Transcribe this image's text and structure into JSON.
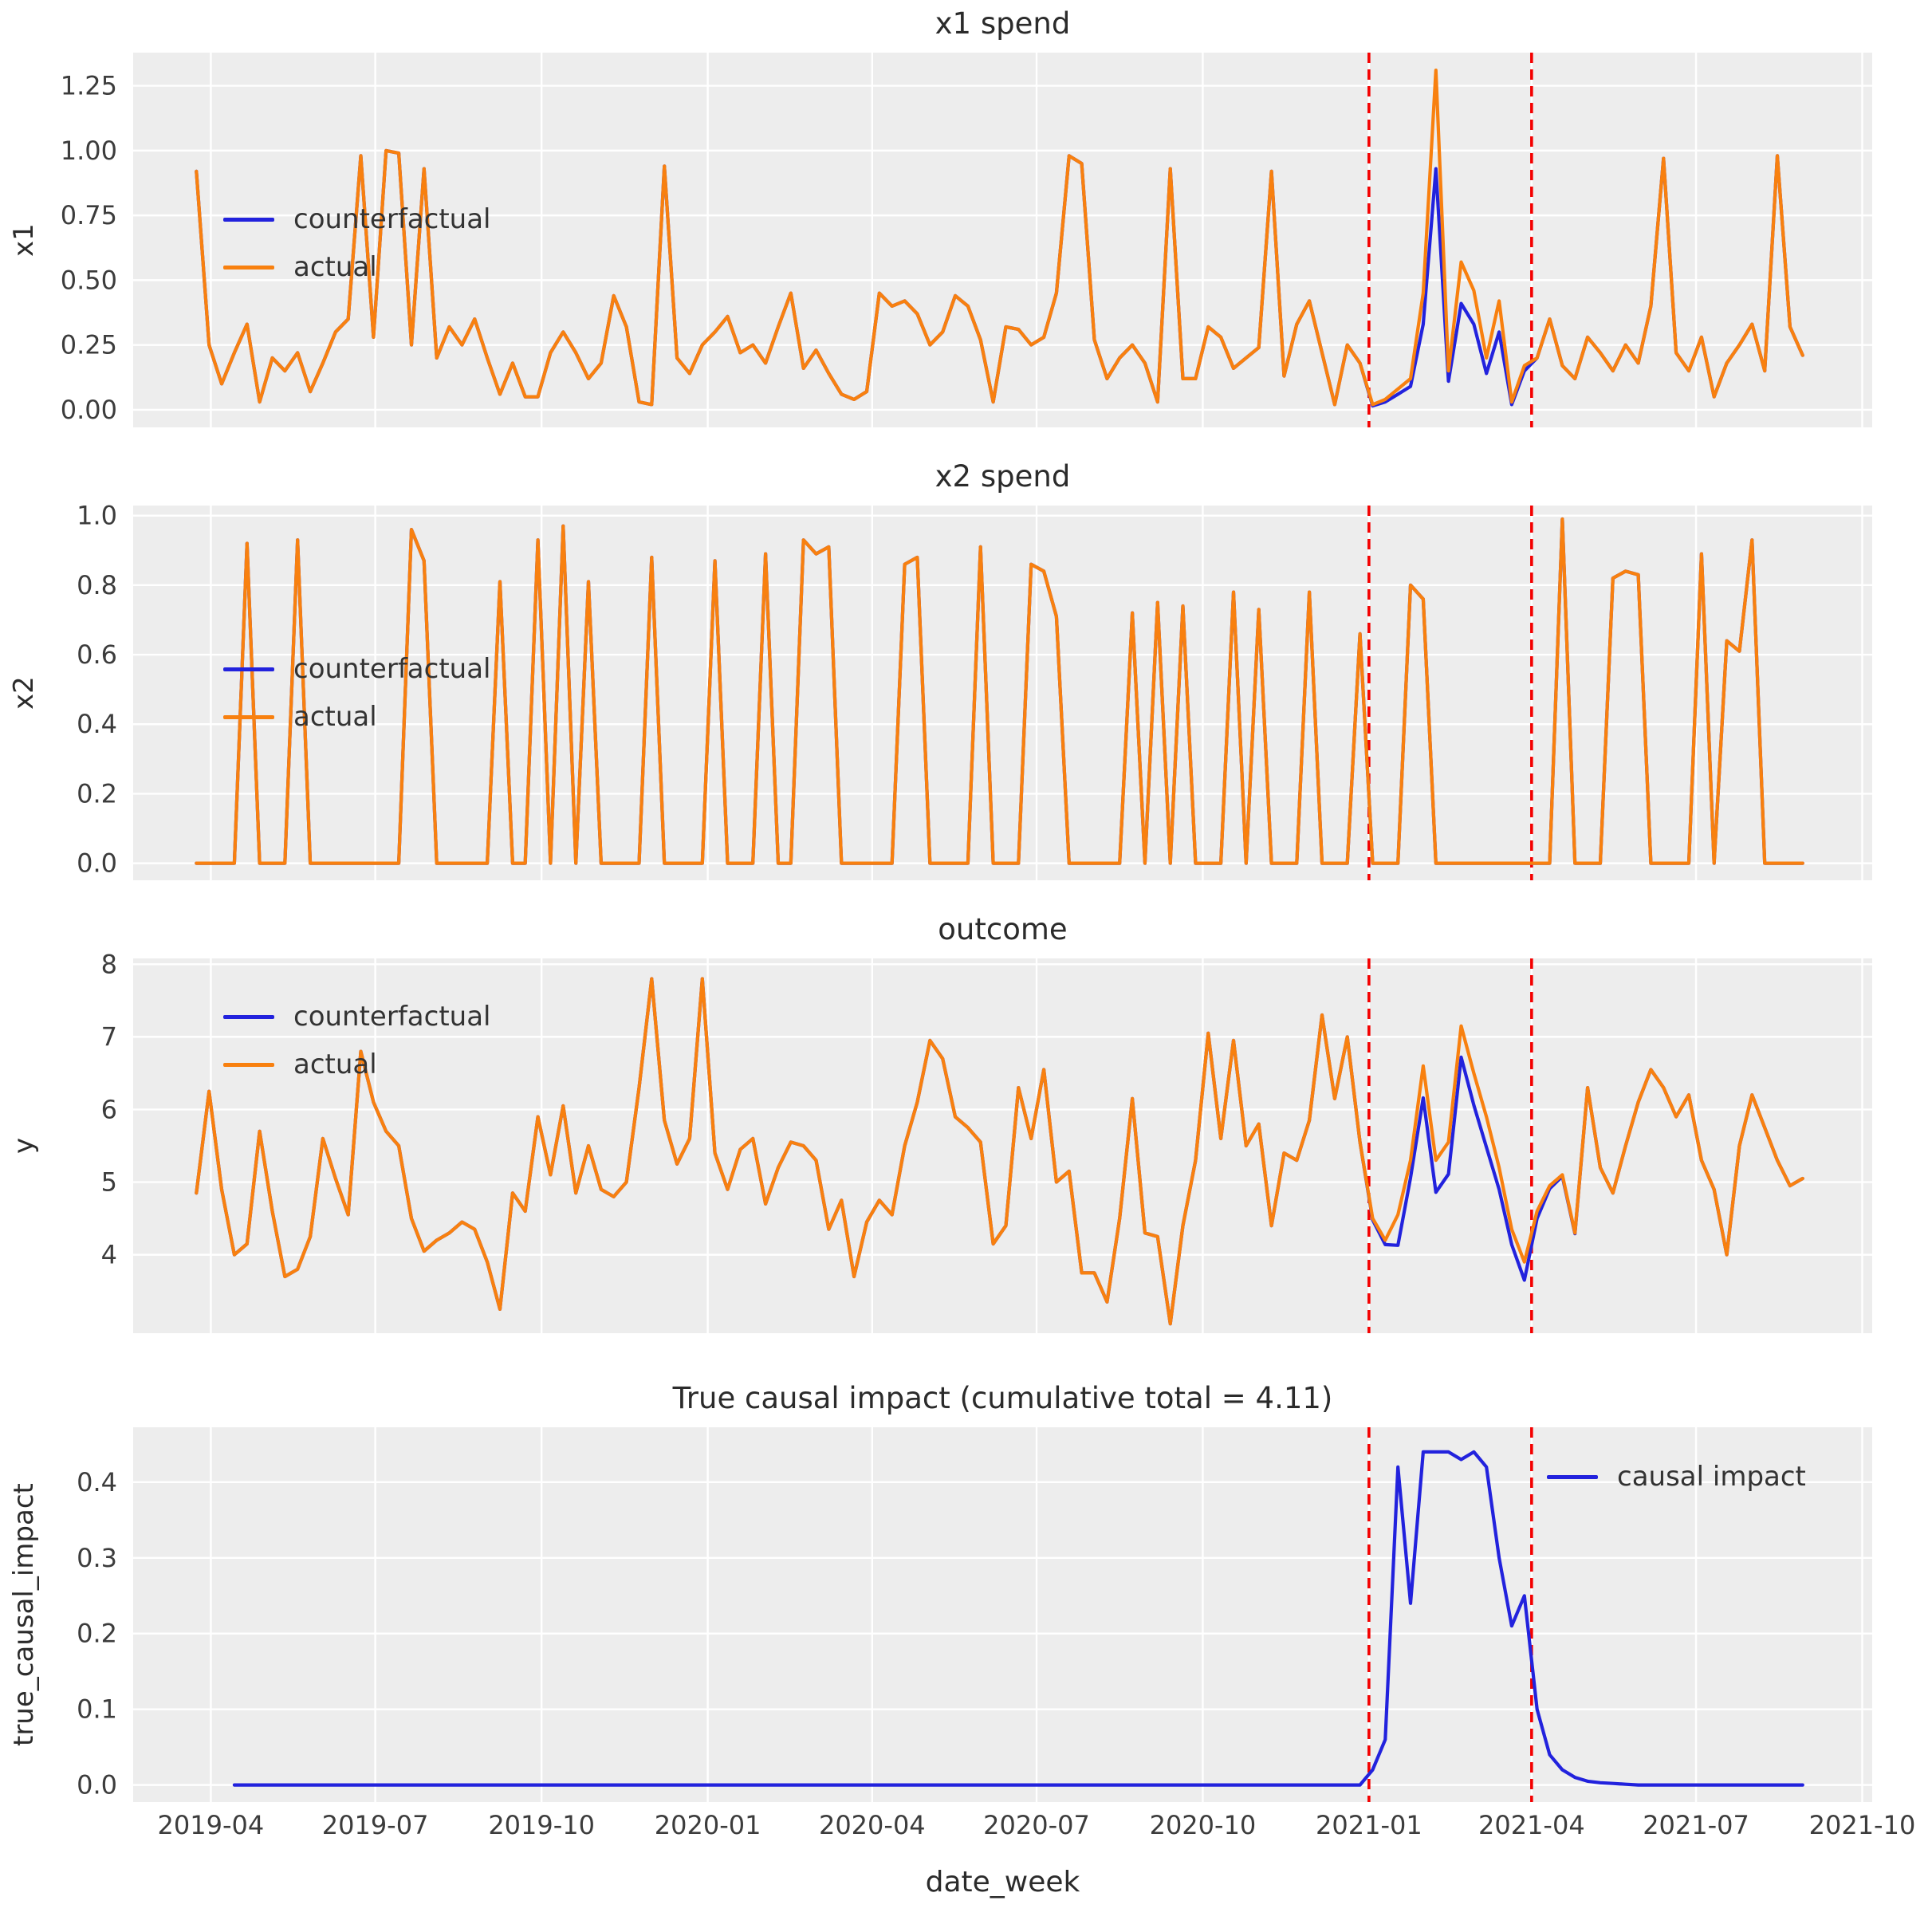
{
  "figure": {
    "background": "#ffffff",
    "axes_background": "#ededed",
    "grid_color": "#ffffff",
    "text_color": "#2b2b2b"
  },
  "shared": {
    "xlabel": "date_week",
    "x_count": 128,
    "xlim": [
      -5,
      132.5
    ],
    "xticks": [
      {
        "pos": 1.14,
        "label": "2019-04"
      },
      {
        "pos": 14.14,
        "label": "2019-07"
      },
      {
        "pos": 27.29,
        "label": "2019-10"
      },
      {
        "pos": 40.43,
        "label": "2020-01"
      },
      {
        "pos": 53.43,
        "label": "2020-04"
      },
      {
        "pos": 66.43,
        "label": "2020-07"
      },
      {
        "pos": 79.57,
        "label": "2020-10"
      },
      {
        "pos": 92.71,
        "label": "2021-01"
      },
      {
        "pos": 105.57,
        "label": "2021-04"
      },
      {
        "pos": 118.57,
        "label": "2021-07"
      },
      {
        "pos": 131.71,
        "label": "2021-10"
      }
    ],
    "treatment_vlines": {
      "color": "#f40000",
      "style": "dashed",
      "positions": [
        92.71,
        105.57
      ]
    }
  },
  "chart_data": [
    {
      "type": "line",
      "title": "x1 spend",
      "ylabel": "x1",
      "ylim": [
        -0.068,
        1.378
      ],
      "yticks": [
        {
          "v": 0,
          "label": "0.00"
        },
        {
          "v": 0.25,
          "label": "0.25"
        },
        {
          "v": 0.5,
          "label": "0.50"
        },
        {
          "v": 0.75,
          "label": "0.75"
        },
        {
          "v": 1.0,
          "label": "1.00"
        },
        {
          "v": 1.25,
          "label": "1.25"
        }
      ],
      "legend_position": "center-left",
      "series": [
        {
          "name": "counterfactual",
          "color": "#2222dd",
          "values": [
            0.92,
            0.25,
            0.1,
            0.22,
            0.33,
            0.03,
            0.2,
            0.15,
            0.22,
            0.07,
            0.18,
            0.3,
            0.35,
            0.98,
            0.28,
            1.0,
            0.99,
            0.25,
            0.93,
            0.2,
            0.32,
            0.25,
            0.35,
            0.2,
            0.06,
            0.18,
            0.05,
            0.05,
            0.22,
            0.3,
            0.22,
            0.12,
            0.18,
            0.44,
            0.32,
            0.03,
            0.02,
            0.94,
            0.2,
            0.14,
            0.25,
            0.3,
            0.36,
            0.22,
            0.25,
            0.18,
            0.32,
            0.45,
            0.16,
            0.23,
            0.14,
            0.06,
            0.04,
            0.07,
            0.45,
            0.4,
            0.42,
            0.37,
            0.25,
            0.3,
            0.44,
            0.4,
            0.27,
            0.03,
            0.32,
            0.31,
            0.25,
            0.28,
            0.45,
            0.98,
            0.95,
            0.27,
            0.12,
            0.2,
            0.25,
            0.18,
            0.03,
            0.93,
            0.12,
            0.12,
            0.32,
            0.28,
            0.16,
            0.2,
            0.24,
            0.92,
            0.13,
            0.33,
            0.42,
            0.22,
            0.02,
            0.25,
            0.18,
            0.015,
            0.03,
            0.06,
            0.09,
            0.33,
            0.93,
            0.11,
            0.41,
            0.33,
            0.14,
            0.3,
            0.02,
            0.15,
            0.2,
            0.35,
            0.17,
            0.12,
            0.28,
            0.22,
            0.15,
            0.25,
            0.18,
            0.4,
            0.97,
            0.22,
            0.15,
            0.28,
            0.05,
            0.18,
            0.25,
            0.33,
            0.15,
            0.98,
            0.32,
            0.21
          ]
        },
        {
          "name": "actual",
          "color": "#f8800f",
          "values": [
            0.92,
            0.25,
            0.1,
            0.22,
            0.33,
            0.03,
            0.2,
            0.15,
            0.22,
            0.07,
            0.18,
            0.3,
            0.35,
            0.98,
            0.28,
            1.0,
            0.99,
            0.25,
            0.93,
            0.2,
            0.32,
            0.25,
            0.35,
            0.2,
            0.06,
            0.18,
            0.05,
            0.05,
            0.22,
            0.3,
            0.22,
            0.12,
            0.18,
            0.44,
            0.32,
            0.03,
            0.02,
            0.94,
            0.2,
            0.14,
            0.25,
            0.3,
            0.36,
            0.22,
            0.25,
            0.18,
            0.32,
            0.45,
            0.16,
            0.23,
            0.14,
            0.06,
            0.04,
            0.07,
            0.45,
            0.4,
            0.42,
            0.37,
            0.25,
            0.3,
            0.44,
            0.4,
            0.27,
            0.03,
            0.32,
            0.31,
            0.25,
            0.28,
            0.45,
            0.98,
            0.95,
            0.27,
            0.12,
            0.2,
            0.25,
            0.18,
            0.03,
            0.93,
            0.12,
            0.12,
            0.32,
            0.28,
            0.16,
            0.2,
            0.24,
            0.92,
            0.13,
            0.33,
            0.42,
            0.22,
            0.02,
            0.25,
            0.18,
            0.02,
            0.04,
            0.08,
            0.12,
            0.45,
            1.31,
            0.15,
            0.57,
            0.46,
            0.2,
            0.42,
            0.03,
            0.17,
            0.2,
            0.35,
            0.17,
            0.12,
            0.28,
            0.22,
            0.15,
            0.25,
            0.18,
            0.4,
            0.97,
            0.22,
            0.15,
            0.28,
            0.05,
            0.18,
            0.25,
            0.33,
            0.15,
            0.98,
            0.32,
            0.21
          ]
        }
      ]
    },
    {
      "type": "line",
      "title": "x2 spend",
      "ylabel": "x2",
      "ylim": [
        -0.049,
        1.029
      ],
      "yticks": [
        {
          "v": 0,
          "label": "0.0"
        },
        {
          "v": 0.2,
          "label": "0.2"
        },
        {
          "v": 0.4,
          "label": "0.4"
        },
        {
          "v": 0.6,
          "label": "0.6"
        },
        {
          "v": 0.8,
          "label": "0.8"
        },
        {
          "v": 1.0,
          "label": "1.0"
        }
      ],
      "legend_position": "center-left",
      "series": [
        {
          "name": "counterfactual",
          "color": "#2222dd",
          "values": [
            0,
            0,
            0,
            0,
            0.92,
            0,
            0,
            0,
            0.93,
            0,
            0,
            0,
            0,
            0,
            0,
            0,
            0,
            0.96,
            0.87,
            0,
            0,
            0,
            0,
            0,
            0.81,
            0,
            0,
            0.93,
            0,
            0.97,
            0,
            0.81,
            0,
            0,
            0,
            0,
            0.88,
            0,
            0,
            0,
            0,
            0.87,
            0,
            0,
            0,
            0.89,
            0,
            0,
            0.93,
            0.89,
            0.91,
            0,
            0,
            0,
            0,
            0,
            0.86,
            0.88,
            0,
            0,
            0,
            0,
            0.91,
            0,
            0,
            0,
            0.86,
            0.84,
            0.71,
            0,
            0,
            0,
            0,
            0,
            0.72,
            0,
            0.75,
            0,
            0.74,
            0,
            0,
            0,
            0.78,
            0,
            0.73,
            0,
            0,
            0,
            0.78,
            0,
            0,
            0,
            0.66,
            0,
            0,
            0,
            0.8,
            0.76,
            0,
            0,
            0,
            0,
            0,
            0,
            0,
            0,
            0,
            0,
            0.99,
            0,
            0,
            0,
            0.82,
            0.84,
            0.83,
            0,
            0,
            0,
            0,
            0.89,
            0,
            0.64,
            0.61,
            0.93,
            0,
            0,
            0,
            0
          ]
        },
        {
          "name": "actual",
          "color": "#f8800f",
          "values": [
            0,
            0,
            0,
            0,
            0.92,
            0,
            0,
            0,
            0.93,
            0,
            0,
            0,
            0,
            0,
            0,
            0,
            0,
            0.96,
            0.87,
            0,
            0,
            0,
            0,
            0,
            0.81,
            0,
            0,
            0.93,
            0,
            0.97,
            0,
            0.81,
            0,
            0,
            0,
            0,
            0.88,
            0,
            0,
            0,
            0,
            0.87,
            0,
            0,
            0,
            0.89,
            0,
            0,
            0.93,
            0.89,
            0.91,
            0,
            0,
            0,
            0,
            0,
            0.86,
            0.88,
            0,
            0,
            0,
            0,
            0.91,
            0,
            0,
            0,
            0.86,
            0.84,
            0.71,
            0,
            0,
            0,
            0,
            0,
            0.72,
            0,
            0.75,
            0,
            0.74,
            0,
            0,
            0,
            0.78,
            0,
            0.73,
            0,
            0,
            0,
            0.78,
            0,
            0,
            0,
            0.66,
            0,
            0,
            0,
            0.8,
            0.76,
            0,
            0,
            0,
            0,
            0,
            0,
            0,
            0,
            0,
            0,
            0.99,
            0,
            0,
            0,
            0.82,
            0.84,
            0.83,
            0,
            0,
            0,
            0,
            0.89,
            0,
            0.64,
            0.61,
            0.93,
            0,
            0,
            0,
            0
          ]
        }
      ]
    },
    {
      "type": "line",
      "title": "outcome",
      "ylabel": "y",
      "ylim": [
        2.92,
        8.08
      ],
      "yticks": [
        {
          "v": 4,
          "label": "4"
        },
        {
          "v": 5,
          "label": "5"
        },
        {
          "v": 6,
          "label": "6"
        },
        {
          "v": 7,
          "label": "7"
        },
        {
          "v": 8,
          "label": "8"
        }
      ],
      "legend_position": "upper-left",
      "series": [
        {
          "name": "counterfactual",
          "color": "#2222dd",
          "values": [
            4.85,
            6.25,
            4.9,
            4.0,
            4.15,
            5.7,
            4.6,
            3.7,
            3.8,
            4.25,
            5.6,
            5.05,
            4.55,
            6.8,
            6.1,
            5.7,
            5.5,
            4.5,
            4.05,
            4.2,
            4.3,
            4.45,
            4.35,
            3.9,
            3.25,
            4.85,
            4.6,
            5.9,
            5.1,
            6.05,
            4.85,
            5.5,
            4.9,
            4.8,
            5.0,
            6.3,
            7.8,
            5.85,
            5.25,
            5.6,
            7.8,
            5.4,
            4.9,
            5.45,
            5.6,
            4.7,
            5.2,
            5.55,
            5.5,
            5.3,
            4.35,
            4.75,
            3.7,
            4.45,
            4.75,
            4.55,
            5.5,
            6.1,
            6.95,
            6.7,
            5.9,
            5.75,
            5.55,
            4.15,
            4.4,
            6.3,
            5.6,
            6.55,
            5.0,
            5.15,
            3.75,
            3.75,
            3.35,
            4.5,
            6.15,
            4.3,
            4.25,
            3.05,
            4.4,
            5.3,
            7.05,
            5.6,
            6.95,
            5.5,
            5.8,
            4.4,
            5.4,
            5.3,
            5.85,
            7.3,
            6.15,
            7.0,
            5.55,
            4.48,
            4.14,
            4.13,
            5.06,
            6.16,
            4.86,
            5.11,
            6.72,
            6.06,
            5.48,
            4.9,
            4.14,
            3.65,
            4.5,
            4.91,
            5.08,
            4.29,
            6.3,
            5.2,
            4.85,
            5.5,
            6.1,
            6.55,
            6.3,
            5.9,
            6.2,
            5.3,
            4.9,
            4.0,
            5.5,
            6.2,
            5.75,
            5.3,
            4.95,
            5.05
          ]
        },
        {
          "name": "actual",
          "color": "#f8800f",
          "values": [
            4.85,
            6.25,
            4.9,
            4.0,
            4.15,
            5.7,
            4.6,
            3.7,
            3.8,
            4.25,
            5.6,
            5.05,
            4.55,
            6.8,
            6.1,
            5.7,
            5.5,
            4.5,
            4.05,
            4.2,
            4.3,
            4.45,
            4.35,
            3.9,
            3.25,
            4.85,
            4.6,
            5.9,
            5.1,
            6.05,
            4.85,
            5.5,
            4.9,
            4.8,
            5.0,
            6.3,
            7.8,
            5.85,
            5.25,
            5.6,
            7.8,
            5.4,
            4.9,
            5.45,
            5.6,
            4.7,
            5.2,
            5.55,
            5.5,
            5.3,
            4.35,
            4.75,
            3.7,
            4.45,
            4.75,
            4.55,
            5.5,
            6.1,
            6.95,
            6.7,
            5.9,
            5.75,
            5.55,
            4.15,
            4.4,
            6.3,
            5.6,
            6.55,
            5.0,
            5.15,
            3.75,
            3.75,
            3.35,
            4.5,
            6.15,
            4.3,
            4.25,
            3.05,
            4.4,
            5.3,
            7.05,
            5.6,
            6.95,
            5.5,
            5.8,
            4.4,
            5.4,
            5.3,
            5.85,
            7.3,
            6.15,
            7.0,
            5.55,
            4.5,
            4.2,
            4.55,
            5.3,
            6.6,
            5.3,
            5.55,
            7.15,
            6.5,
            5.9,
            5.2,
            4.35,
            3.9,
            4.6,
            4.95,
            5.1,
            4.3,
            6.3,
            5.2,
            4.85,
            5.5,
            6.1,
            6.55,
            6.3,
            5.9,
            6.2,
            5.3,
            4.9,
            4.0,
            5.5,
            6.2,
            5.75,
            5.3,
            4.95,
            5.05
          ]
        }
      ]
    },
    {
      "type": "line",
      "title": "True causal impact (cumulative total = 4.11)",
      "ylabel": "true_causal_impact",
      "cumulative_total": 4.11,
      "ylim": [
        -0.0225,
        0.4725
      ],
      "yticks": [
        {
          "v": 0,
          "label": "0.0"
        },
        {
          "v": 0.1,
          "label": "0.1"
        },
        {
          "v": 0.2,
          "label": "0.2"
        },
        {
          "v": 0.3,
          "label": "0.3"
        },
        {
          "v": 0.4,
          "label": "0.4"
        }
      ],
      "legend_position": "upper-right",
      "series": [
        {
          "name": "causal impact",
          "color": "#2222dd",
          "values": [
            null,
            null,
            null,
            0,
            0,
            0,
            0,
            0,
            0,
            0,
            0,
            0,
            0,
            0,
            0,
            0,
            0,
            0,
            0,
            0,
            0,
            0,
            0,
            0,
            0,
            0,
            0,
            0,
            0,
            0,
            0,
            0,
            0,
            0,
            0,
            0,
            0,
            0,
            0,
            0,
            0,
            0,
            0,
            0,
            0,
            0,
            0,
            0,
            0,
            0,
            0,
            0,
            0,
            0,
            0,
            0,
            0,
            0,
            0,
            0,
            0,
            0,
            0,
            0,
            0,
            0,
            0,
            0,
            0,
            0,
            0,
            0,
            0,
            0,
            0,
            0,
            0,
            0,
            0,
            0,
            0,
            0,
            0,
            0,
            0,
            0,
            0,
            0,
            0,
            0,
            0,
            0,
            0,
            0.02,
            0.06,
            0.42,
            0.24,
            0.44,
            0.44,
            0.44,
            0.43,
            0.44,
            0.42,
            0.3,
            0.21,
            0.25,
            0.1,
            0.04,
            0.02,
            0.01,
            0.005,
            0.003,
            0.002,
            0.001,
            0,
            0,
            0,
            0,
            0,
            0,
            0,
            0,
            0,
            0,
            0,
            0,
            0,
            0
          ]
        }
      ]
    }
  ]
}
